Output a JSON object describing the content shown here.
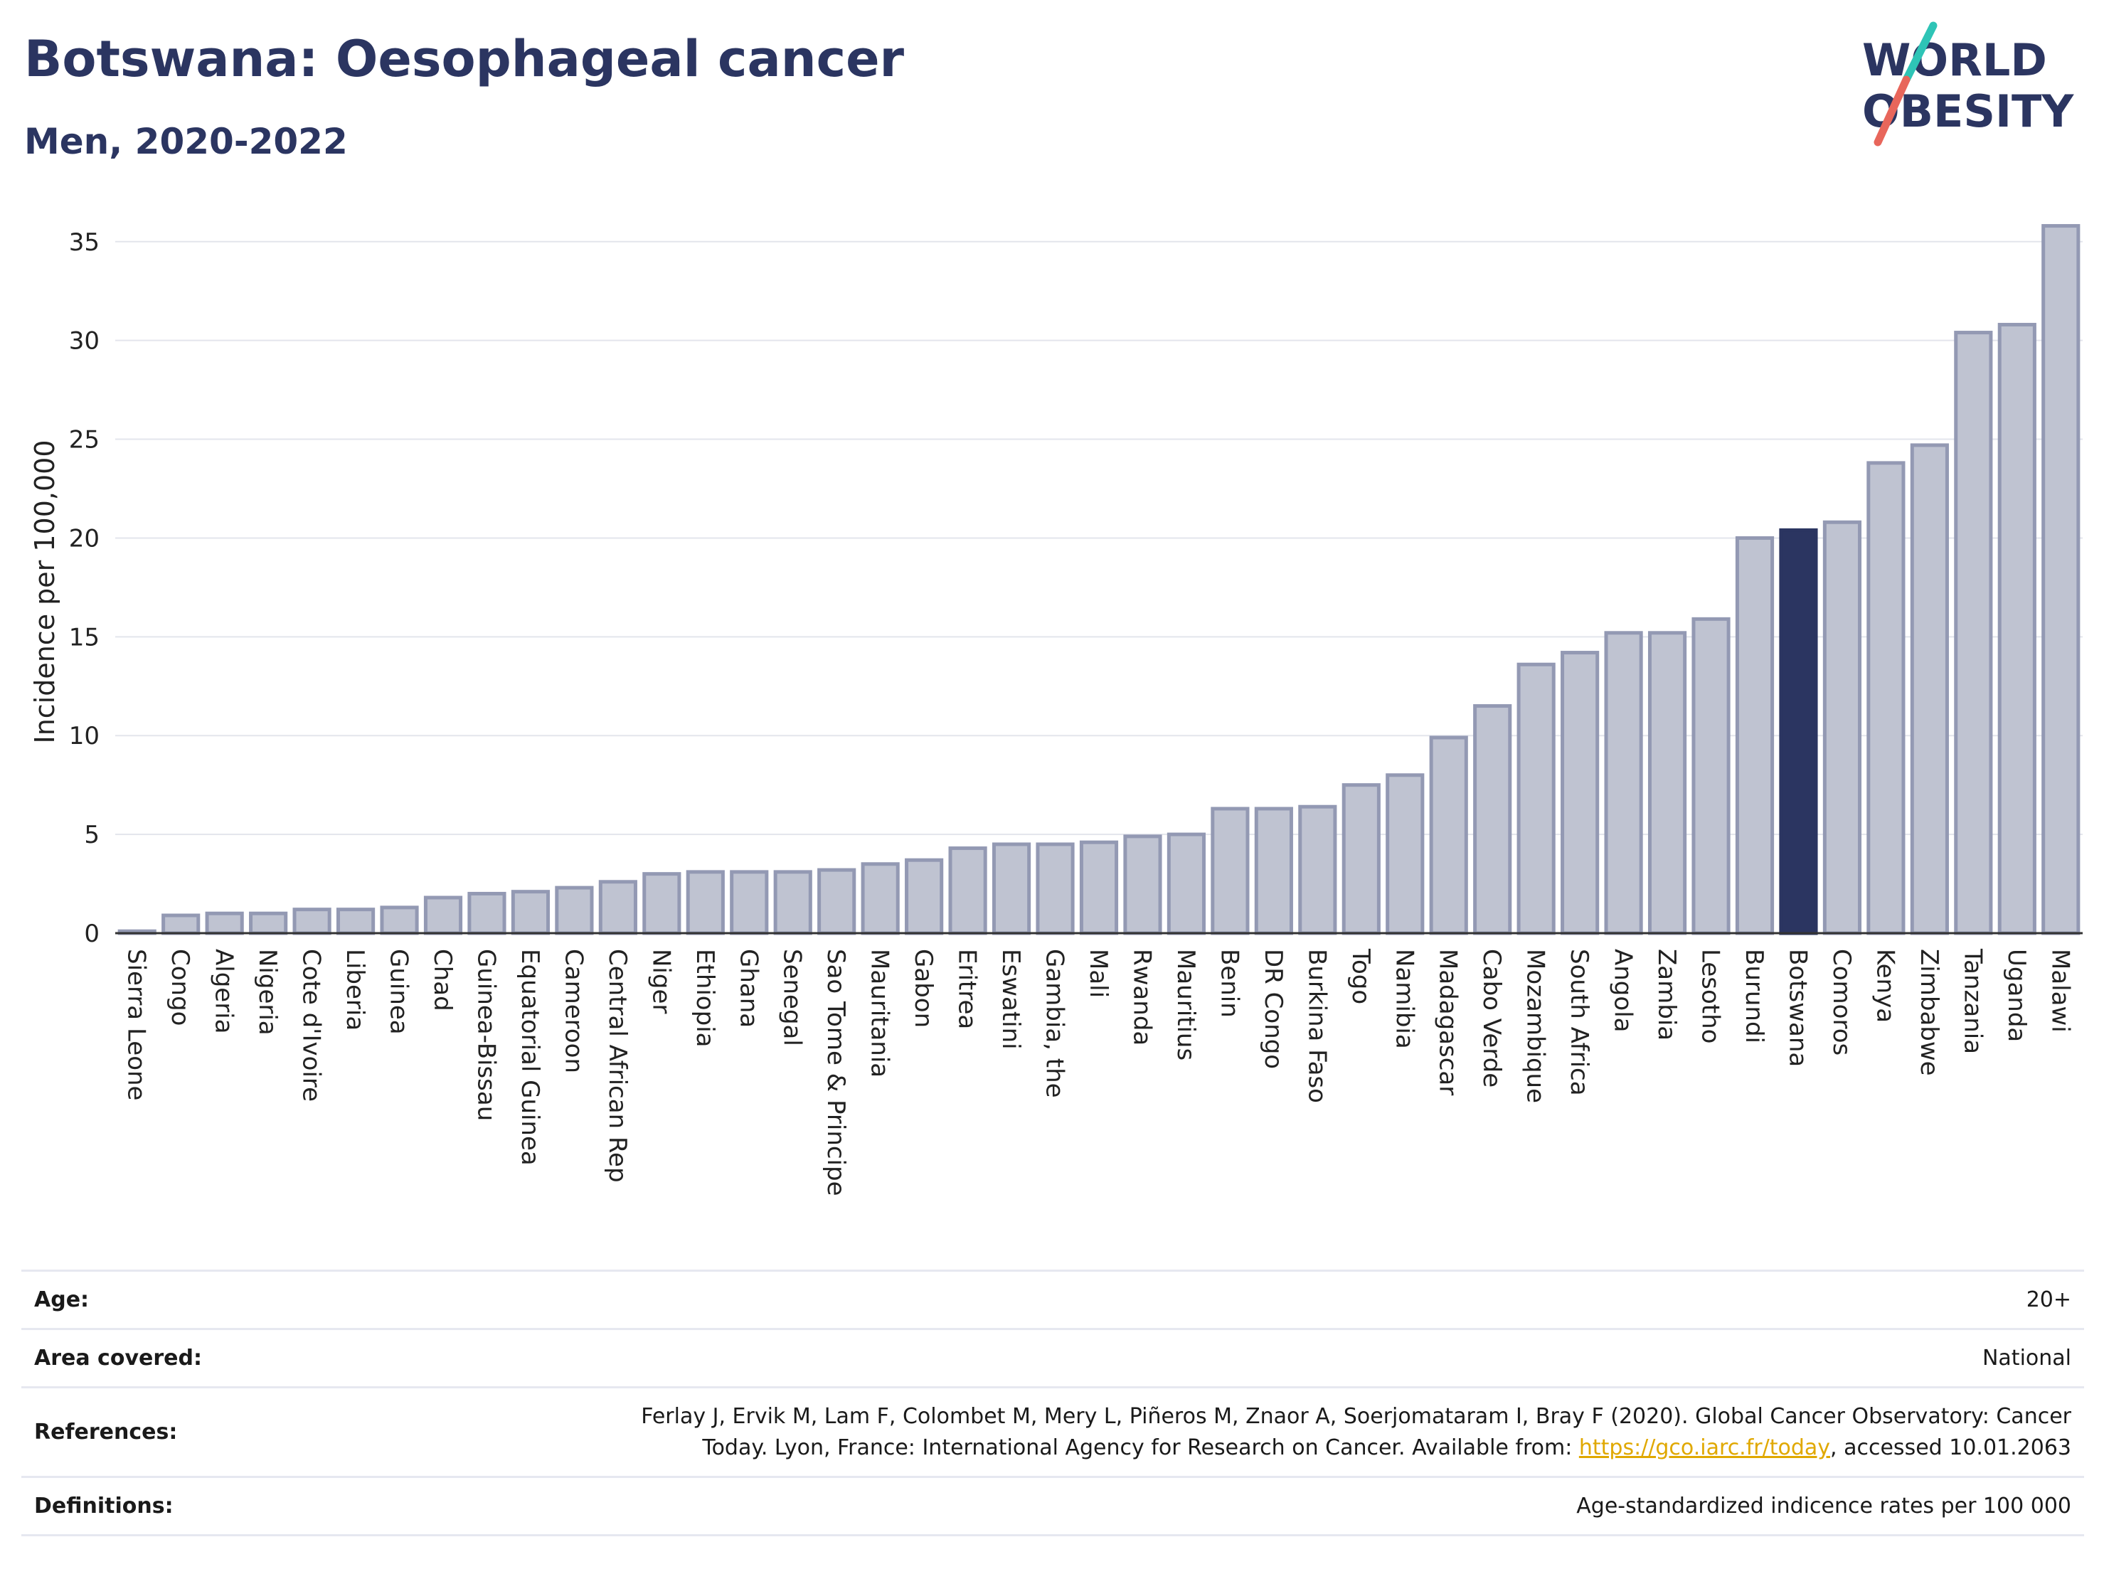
{
  "header": {
    "title": "Botswana: Oesophageal cancer",
    "subtitle": "Men, 2020-2022"
  },
  "logo": {
    "line1": "WORLD",
    "line2": "OBESITY"
  },
  "colors": {
    "highlight": "#2b3561",
    "bar_fill": "#bfc3d1",
    "bar_stroke": "#9399b3",
    "title": "#2b3561",
    "link": "#e0a800",
    "logo_slash_red": "#e8665b",
    "logo_slash_teal": "#2ec4b6"
  },
  "chart_data": {
    "type": "bar",
    "title": "Botswana: Oesophageal cancer",
    "subtitle": "Men, 2020-2022",
    "ylabel": "Incidence per 100,000",
    "xlabel": "",
    "ylim": [
      0,
      36
    ],
    "yticks": [
      0,
      5,
      10,
      15,
      20,
      25,
      30,
      35
    ],
    "grid": true,
    "highlight": "Botswana",
    "categories": [
      "Sierra Leone",
      "Congo",
      "Algeria",
      "Nigeria",
      "Cote d'Ivoire",
      "Liberia",
      "Guinea",
      "Chad",
      "Guinea-Bissau",
      "Equatorial Guinea",
      "Cameroon",
      "Central African Rep",
      "Niger",
      "Ethiopia",
      "Ghana",
      "Senegal",
      "Sao Tome & Principe",
      "Mauritania",
      "Gabon",
      "Eritrea",
      "Eswatini",
      "Gambia, the",
      "Mali",
      "Rwanda",
      "Mauritius",
      "Benin",
      "DR Congo",
      "Burkina Faso",
      "Togo",
      "Namibia",
      "Madagascar",
      "Cabo Verde",
      "Mozambique",
      "South Africa",
      "Angola",
      "Zambia",
      "Lesotho",
      "Burundi",
      "Botswana",
      "Comoros",
      "Kenya",
      "Zimbabwe",
      "Tanzania",
      "Uganda",
      "Malawi"
    ],
    "values": [
      0.1,
      0.9,
      1.0,
      1.0,
      1.2,
      1.2,
      1.3,
      1.8,
      2.0,
      2.1,
      2.3,
      2.6,
      3.0,
      3.1,
      3.1,
      3.1,
      3.2,
      3.5,
      3.7,
      4.3,
      4.5,
      4.5,
      4.6,
      4.9,
      5.0,
      6.3,
      6.3,
      6.4,
      7.5,
      8.0,
      9.9,
      11.5,
      13.6,
      14.2,
      15.2,
      15.2,
      15.9,
      20.0,
      20.4,
      20.8,
      23.8,
      24.7,
      30.4,
      30.8,
      35.8
    ]
  },
  "info": [
    {
      "label": "Age:",
      "value": "20+"
    },
    {
      "label": "Area covered:",
      "value": "National"
    },
    {
      "label": "References:",
      "value_line1": "Ferlay J, Ervik M, Lam F, Colombet M, Mery L, Piñeros M, Znaor A, Soerjomataram I, Bray F (2020). Global Cancer Observatory: Cancer",
      "value_line2_pre": "Today. Lyon, France: International Agency for Research on Cancer. Available from: ",
      "link": "https://gco.iarc.fr/today",
      "value_line2_post": ", accessed 10.01.2063"
    },
    {
      "label": "Definitions:",
      "value": "Age-standardized indicence rates per 100 000"
    }
  ]
}
